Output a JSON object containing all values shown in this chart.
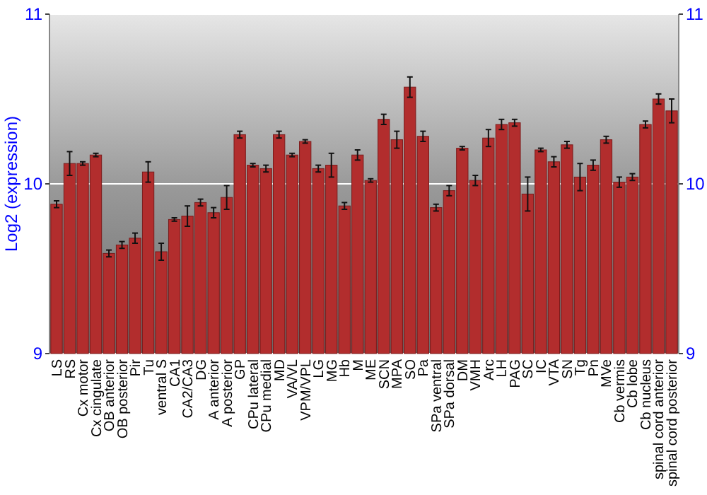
{
  "chart_data": {
    "type": "bar",
    "ylabel": "Log2 (expression)",
    "categories": [
      "LS",
      "RS",
      "Cx motor",
      "Cx cingulate",
      "OB anterior",
      "OB posterior",
      "Pir",
      "Tu",
      "ventral S",
      "CA1",
      "CA2/CA3",
      "DG",
      "A anterior",
      "A posterior",
      "GP",
      "CPu lateral",
      "CPu medial",
      "MD",
      "VA/VL",
      "VPM/VPL",
      "LG",
      "MG",
      "Hb",
      "M",
      "ME",
      "SCN",
      "MPA",
      "SO",
      "Pa",
      "SPa ventral",
      "SPa dorsal",
      "DM",
      "VMH",
      "Arc",
      "LH",
      "PAG",
      "SC",
      "IC",
      "VTA",
      "SN",
      "Tg",
      "Pn",
      "MVe",
      "Cb vermis",
      "Cb lobe",
      "Cb nucleus",
      "spinal cord anterior",
      "spinal cord posterior"
    ],
    "values": [
      9.88,
      10.12,
      10.12,
      10.17,
      9.59,
      9.64,
      9.68,
      10.07,
      9.6,
      9.79,
      9.81,
      9.89,
      9.83,
      9.92,
      10.29,
      10.11,
      10.09,
      10.29,
      10.17,
      10.25,
      10.09,
      10.11,
      9.87,
      10.17,
      10.02,
      10.38,
      10.26,
      10.57,
      10.28,
      9.86,
      9.96,
      10.21,
      10.02,
      10.27,
      10.35,
      10.36,
      9.94,
      10.2,
      10.13,
      10.23,
      10.04,
      10.11,
      10.26,
      10.01,
      10.04,
      10.35,
      10.5,
      10.43
    ],
    "errors": [
      0.02,
      0.07,
      0.01,
      0.01,
      0.02,
      0.02,
      0.03,
      0.06,
      0.05,
      0.01,
      0.06,
      0.02,
      0.03,
      0.07,
      0.02,
      0.01,
      0.02,
      0.02,
      0.01,
      0.01,
      0.02,
      0.07,
      0.02,
      0.03,
      0.01,
      0.03,
      0.05,
      0.06,
      0.03,
      0.02,
      0.03,
      0.01,
      0.03,
      0.05,
      0.03,
      0.02,
      0.1,
      0.01,
      0.03,
      0.02,
      0.08,
      0.03,
      0.02,
      0.03,
      0.02,
      0.02,
      0.03,
      0.07
    ],
    "color": "#b22d2d",
    "ylim": [
      9,
      11
    ],
    "yticks": [
      9,
      10,
      11
    ],
    "y2lim": [
      9,
      11
    ],
    "y2ticks": [
      9,
      10,
      11
    ],
    "grid": "y"
  }
}
